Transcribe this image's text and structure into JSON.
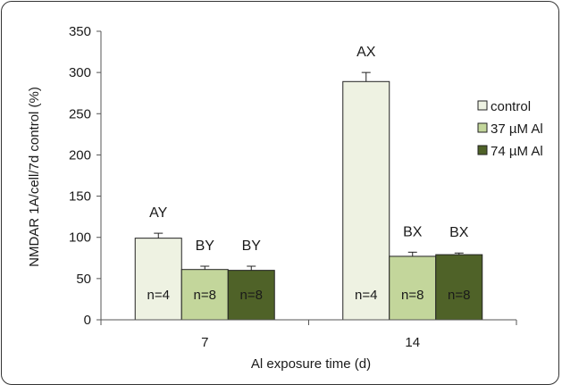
{
  "chart_data": {
    "type": "bar",
    "title": "",
    "xlabel": "Al exposure time (d)",
    "ylabel": "NMDAR 1A/cell/7d control (%)",
    "ylim": [
      0,
      350
    ],
    "yticks": [
      0,
      50,
      100,
      150,
      200,
      250,
      300,
      350
    ],
    "categories": [
      "7",
      "14"
    ],
    "legend_position": "right",
    "grid": false,
    "series": [
      {
        "name": "control",
        "color": "#eef2e2",
        "values": [
          99,
          289
        ],
        "errors": [
          6,
          11
        ],
        "labels": [
          "AY",
          "AX"
        ],
        "n": [
          "n=4",
          "n=4"
        ]
      },
      {
        "name": "37 µM Al",
        "color": "#c3d69b",
        "values": [
          61,
          77
        ],
        "errors": [
          4,
          5
        ],
        "labels": [
          "BY",
          "BX"
        ],
        "n": [
          "n=8",
          "n=8"
        ]
      },
      {
        "name": "74 µM Al",
        "color": "#4f6228",
        "values": [
          60,
          79
        ],
        "errors": [
          5,
          2
        ],
        "labels": [
          "BY",
          "BX"
        ],
        "n": [
          "n=8",
          "n=8"
        ]
      }
    ]
  }
}
